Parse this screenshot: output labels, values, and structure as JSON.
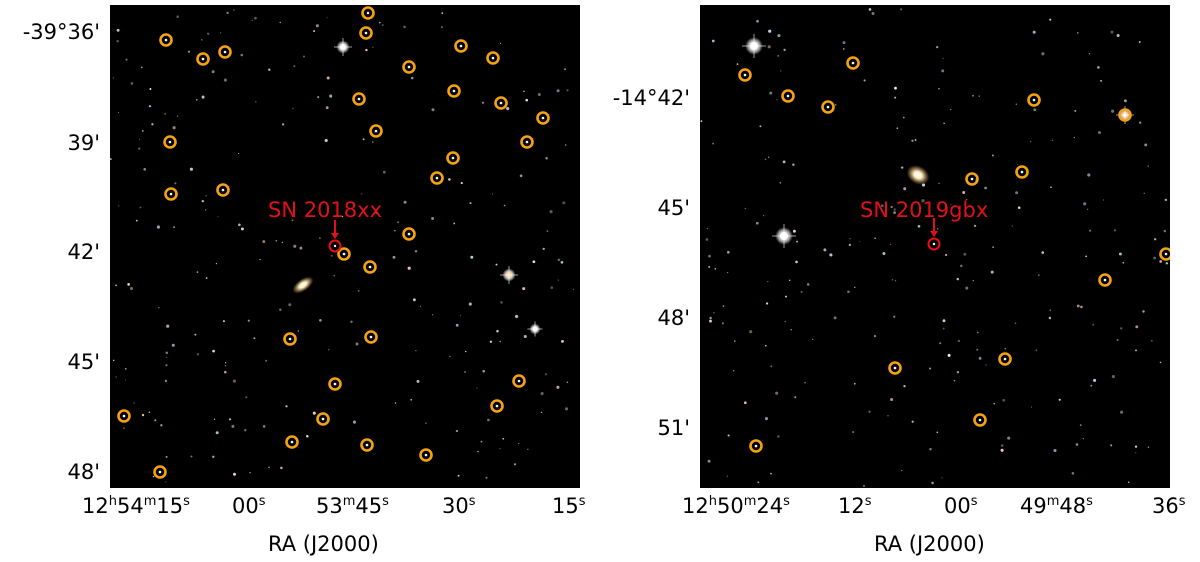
{
  "left_panel": {
    "sn_label": "SN 2018xx",
    "xlabel": "RA (J2000)",
    "dec_ticks": [
      "-39°36'",
      "39'",
      "42'",
      "45'",
      "48'"
    ],
    "ra_ticks": [
      {
        "pre": "12",
        "h": "h",
        "mid": "54",
        "m": "m",
        "post": "15",
        "s": "s"
      },
      {
        "pre": "",
        "h": "",
        "mid": "",
        "m": "",
        "post": "00",
        "s": "s"
      },
      {
        "pre": "",
        "h": "",
        "mid": "53",
        "m": "m",
        "post": "45",
        "s": "s"
      },
      {
        "pre": "",
        "h": "",
        "mid": "",
        "m": "",
        "post": "30",
        "s": "s"
      },
      {
        "pre": "",
        "h": "",
        "mid": "",
        "m": "",
        "post": "15",
        "s": "s"
      }
    ]
  },
  "right_panel": {
    "sn_label": "SN 2019gbx",
    "xlabel": "RA (J2000)",
    "dec_ticks": [
      "-14°42'",
      "45'",
      "48'",
      "51'"
    ],
    "ra_ticks": [
      {
        "pre": "12",
        "h": "h",
        "mid": "50",
        "m": "m",
        "post": "24",
        "s": "s"
      },
      {
        "pre": "",
        "h": "",
        "mid": "",
        "m": "",
        "post": "12",
        "s": "s"
      },
      {
        "pre": "",
        "h": "",
        "mid": "",
        "m": "",
        "post": "00",
        "s": "s"
      },
      {
        "pre": "",
        "h": "",
        "mid": "49",
        "m": "m",
        "post": "48",
        "s": "s"
      },
      {
        "pre": "",
        "h": "",
        "mid": "",
        "m": "",
        "post": "36",
        "s": "s"
      }
    ]
  },
  "colors": {
    "marker_circle": "#f5a30f",
    "sn_marker": "#e3101a",
    "sky": "#000000"
  }
}
